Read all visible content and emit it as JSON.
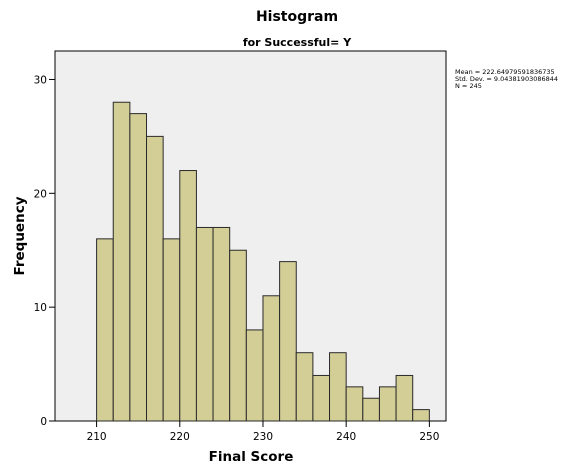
{
  "chart_data": {
    "type": "bar",
    "title": "Histogram",
    "subtitle": "for Successful= Y",
    "xlabel": "Final Score",
    "ylabel": "Frequency",
    "xlim": [
      205,
      252
    ],
    "ylim": [
      0,
      32.5
    ],
    "x_ticks": [
      210,
      220,
      230,
      240,
      250
    ],
    "y_ticks": [
      0,
      10,
      20,
      30
    ],
    "bin_width": 2,
    "bins": [
      {
        "start": 210,
        "end": 212,
        "count": 16
      },
      {
        "start": 212,
        "end": 214,
        "count": 28
      },
      {
        "start": 214,
        "end": 216,
        "count": 27
      },
      {
        "start": 216,
        "end": 218,
        "count": 25
      },
      {
        "start": 218,
        "end": 220,
        "count": 16
      },
      {
        "start": 220,
        "end": 222,
        "count": 22
      },
      {
        "start": 222,
        "end": 224,
        "count": 17
      },
      {
        "start": 224,
        "end": 226,
        "count": 17
      },
      {
        "start": 226,
        "end": 228,
        "count": 15
      },
      {
        "start": 228,
        "end": 230,
        "count": 8
      },
      {
        "start": 230,
        "end": 232,
        "count": 11
      },
      {
        "start": 232,
        "end": 234,
        "count": 14
      },
      {
        "start": 234,
        "end": 236,
        "count": 6
      },
      {
        "start": 236,
        "end": 238,
        "count": 4
      },
      {
        "start": 238,
        "end": 240,
        "count": 6
      },
      {
        "start": 240,
        "end": 242,
        "count": 3
      },
      {
        "start": 242,
        "end": 244,
        "count": 2
      },
      {
        "start": 244,
        "end": 246,
        "count": 3
      },
      {
        "start": 246,
        "end": 248,
        "count": 4
      },
      {
        "start": 248,
        "end": 250,
        "count": 1
      }
    ],
    "stats": [
      "Mean = 222.64979591836735",
      "Std. Dev. = 9.04381903086844",
      "N = 245"
    ],
    "grid": false,
    "colors": {
      "bar_fill": "#d3cd96",
      "bar_stroke": "#2a2a2a",
      "plot_background": "#efefef"
    }
  }
}
